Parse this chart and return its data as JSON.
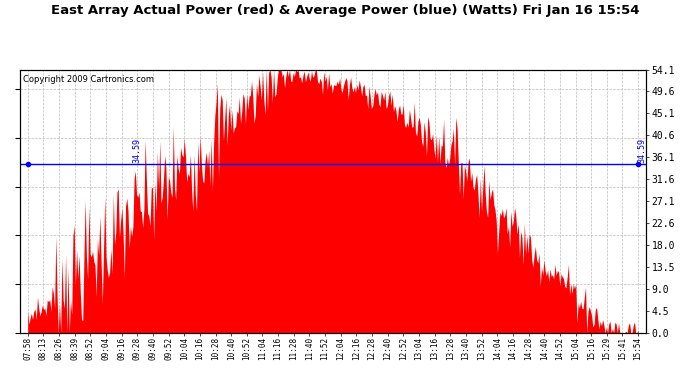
{
  "title": "East Array Actual Power (red) & Average Power (blue) (Watts) Fri Jan 16 15:54",
  "copyright": "Copyright 2009 Cartronics.com",
  "avg_power": 34.59,
  "y_max": 54.1,
  "y_min": 0.0,
  "y_ticks": [
    0.0,
    4.5,
    9.0,
    13.5,
    18.0,
    22.6,
    27.1,
    31.6,
    36.1,
    40.6,
    45.1,
    49.6,
    54.1
  ],
  "bg_color": "#ffffff",
  "fill_color": "#ff0000",
  "line_color": "#0000ff",
  "grid_color": "#bbbbbb",
  "title_fontsize": 9.5,
  "copyright_fontsize": 6,
  "avg_label": "34.59",
  "x_labels": [
    "07:58",
    "08:13",
    "08:26",
    "08:39",
    "08:52",
    "09:04",
    "09:16",
    "09:28",
    "09:40",
    "09:52",
    "10:04",
    "10:16",
    "10:28",
    "10:40",
    "10:52",
    "11:04",
    "11:16",
    "11:28",
    "11:40",
    "11:52",
    "12:04",
    "12:16",
    "12:28",
    "12:40",
    "12:52",
    "13:04",
    "13:16",
    "13:28",
    "13:40",
    "13:52",
    "14:04",
    "14:16",
    "14:28",
    "14:40",
    "14:52",
    "15:04",
    "15:16",
    "15:29",
    "15:41",
    "15:54"
  ]
}
